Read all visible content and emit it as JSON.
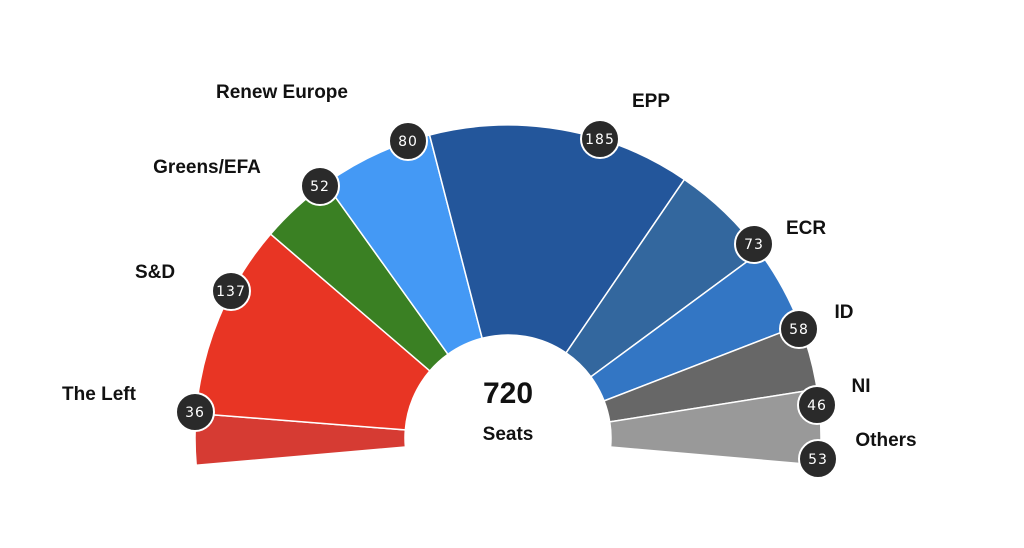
{
  "chart_data": {
    "type": "parliament",
    "total": "720",
    "total_label": "Seats",
    "series": [
      {
        "name": "The Left",
        "value": 36,
        "color": "#d63b33"
      },
      {
        "name": "S&D",
        "value": 137,
        "color": "#e83524"
      },
      {
        "name": "Greens/EFA",
        "value": 52,
        "color": "#3a8023"
      },
      {
        "name": "Renew Europe",
        "value": 80,
        "color": "#4499f5"
      },
      {
        "name": "EPP",
        "value": 185,
        "color": "#23569b"
      },
      {
        "name": "ECR",
        "value": 73,
        "color": "#33679e"
      },
      {
        "name": "ID",
        "value": 58,
        "color": "#3376c4"
      },
      {
        "name": "NI",
        "value": 46,
        "color": "#676767"
      },
      {
        "name": "Others",
        "value": 53,
        "color": "#999999"
      }
    ],
    "badge_color": "#2a2a2a"
  }
}
